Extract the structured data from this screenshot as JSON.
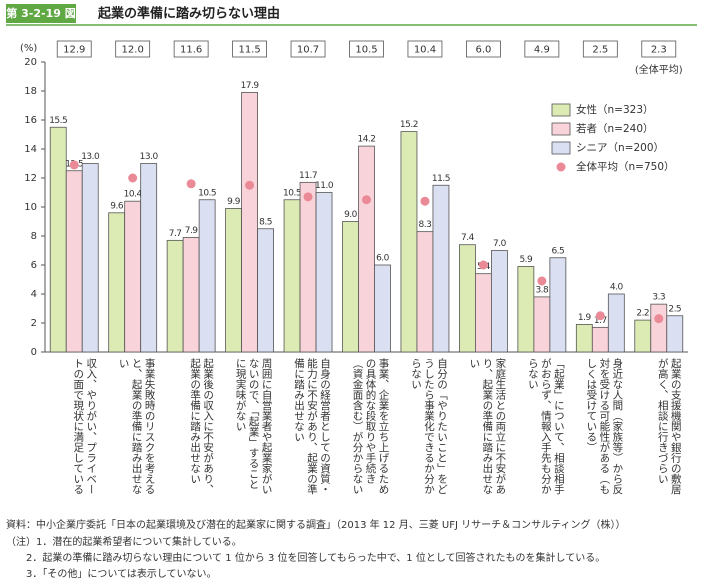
{
  "chart_data": {
    "type": "bar",
    "label": "第 3-2-19 図",
    "title": "起業の準備に踏み切らない理由",
    "y_label": "(%)",
    "ylim": [
      0,
      20
    ],
    "yticks": [
      0,
      2,
      4,
      6,
      8,
      10,
      12,
      14,
      16,
      18,
      20
    ],
    "categories": [
      "収入、やりがい、プライベートの面で現状に満足している",
      "事業失敗時のリスクを考えると、起業の準備に踏み出せない",
      "起業後の収入に不安があり、起業の準備に踏み出せない",
      "周囲に自営業者や起業家がいないので、「起業」することに現実味がない",
      "自身の経営者としての資質・能力に不安があり、起業の準備に踏み出せない",
      "事業、企業を立ち上げるための具体的な段取りや手続き（資金面含む）が分からない",
      "自分の「やりたいこと」をどうしたら事業化できるか分からない",
      "家庭生活との両立に不安があり、起業の準備に踏み出せない",
      "「起業」について、相談相手がおらず、情報入手先も分からない",
      "身近な人間（家族等）から反対を受ける可能性がある（もしくは受けている）",
      "起業の支援機関や銀行の敷居が高く、相談に行きづらい"
    ],
    "series": [
      {
        "name": "女性（n=323）",
        "color": "#dcebb4",
        "style": "bar",
        "values": [
          15.5,
          9.6,
          7.7,
          9.9,
          10.5,
          9.0,
          15.2,
          7.4,
          5.9,
          1.9,
          2.2
        ],
        "value_labels": [
          "15.5",
          "9.6",
          "7.7",
          "9.9",
          "10.5",
          "9.0",
          "15.2",
          "7.4",
          "5.9",
          "1.9",
          "2.2"
        ]
      },
      {
        "name": "若者（n=240）",
        "color": "#f9d3da",
        "style": "bar",
        "values": [
          12.5,
          10.4,
          7.9,
          17.9,
          11.7,
          14.2,
          8.3,
          5.4,
          3.8,
          1.7,
          3.3
        ],
        "value_labels": [
          "12.5",
          "10.4",
          "7.9",
          "17.9",
          "11.7",
          "14.2",
          "8.3",
          "5.4",
          "3.8",
          "1.7",
          "3.3"
        ]
      },
      {
        "name": "シニア（n=200）",
        "color": "#dadff2",
        "style": "bar",
        "values": [
          13.0,
          13.0,
          10.5,
          8.5,
          11.0,
          6.0,
          11.5,
          7.0,
          6.5,
          4.0,
          2.5
        ],
        "value_labels": [
          "13.0",
          "13.0",
          "10.5",
          "8.5",
          "11.0",
          "6.0",
          "11.5",
          "7.0",
          "6.5",
          "4.0",
          "2.5"
        ]
      },
      {
        "name": "全体平均（n=750）",
        "color": "#ea8a96",
        "style": "dot",
        "values": [
          12.9,
          12.0,
          11.6,
          11.5,
          10.7,
          10.5,
          10.4,
          6.0,
          4.9,
          2.5,
          2.3
        ],
        "value_labels": [
          "12.9",
          "12.0",
          "11.6",
          "11.5",
          "10.7",
          "10.5",
          "10.4",
          "6.0",
          "4.9",
          "2.5",
          "2.3"
        ]
      }
    ],
    "average_label": "(全体平均)",
    "source": "資料：中小企業庁委託「日本の起業環境及び潜在的起業家に関する調査」（2013 年 12 月、三菱 UFJ リサーチ＆コンサルティング（株））",
    "notes": [
      "（注）1．潜在的起業希望者について集計している。",
      "2．起業の準備に踏み切らない理由について 1 位から 3 位を回答してもらった中で、1 位として回答されたものを集計している。",
      "3．「その他」については表示していない。"
    ]
  }
}
